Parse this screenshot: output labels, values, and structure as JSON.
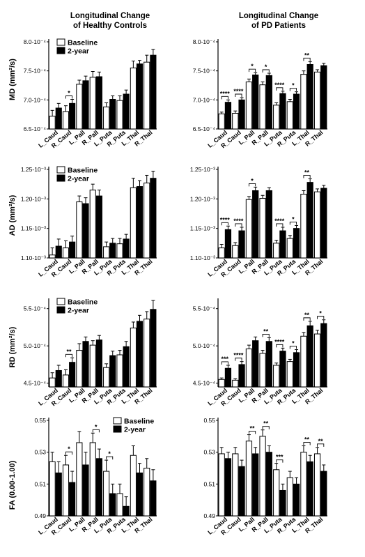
{
  "column_titles": [
    [
      "Longitudinal Change",
      "of Healthy Controls"
    ],
    [
      "Longitudinal Change",
      "of PD Patients"
    ]
  ],
  "row_labels": [
    "MD (mm²/s)",
    "AD (mm²/s)",
    "RD (mm²/s)",
    "FA (0.00-1.00)"
  ],
  "colors": {
    "baseline": "#ffffff",
    "two_year": "#000000",
    "axis": "#000000"
  },
  "chart_data": [
    {
      "type": "bar",
      "row": 0,
      "col": 0,
      "categories": [
        "L_Caud",
        "R_Caud",
        "L_Pall",
        "R_Pall",
        "L_Puta",
        "R_Puta",
        "L_Thal",
        "R_Thal"
      ],
      "ylim": [
        6.5,
        8.0
      ],
      "yticks": [
        6.5,
        7.0,
        7.5,
        8.0
      ],
      "yticklabels": [
        "6.5-10⁻⁴",
        "7.0-10⁻⁴",
        "7.5-10⁻⁴",
        "8.0-10⁻⁴"
      ],
      "ylabel": "MD (mm²/s)",
      "legend": [
        "Baseline",
        "2-year"
      ],
      "legend_position": "top-left",
      "series": [
        {
          "name": "Baseline",
          "values": [
            6.72,
            6.8,
            7.27,
            7.39,
            6.88,
            6.99,
            7.55,
            7.65
          ],
          "errors": [
            0.1,
            0.1,
            0.07,
            0.1,
            0.07,
            0.08,
            0.12,
            0.12
          ]
        },
        {
          "name": "2-year",
          "values": [
            6.86,
            6.94,
            7.33,
            7.4,
            7.01,
            7.1,
            7.62,
            7.77
          ],
          "errors": [
            0.08,
            0.07,
            0.08,
            0.08,
            0.06,
            0.07,
            0.06,
            0.1
          ]
        }
      ],
      "significance": [
        {
          "category": "R_Caud",
          "label": "*"
        }
      ]
    },
    {
      "type": "bar",
      "row": 0,
      "col": 1,
      "categories": [
        "L_Caud",
        "R_Caud",
        "L_Pall",
        "R_Pall",
        "L_Puta",
        "R_Puta",
        "L_Thal",
        "R_Thal"
      ],
      "ylim": [
        6.5,
        8.0
      ],
      "yticks": [
        6.5,
        7.0,
        7.5,
        8.0
      ],
      "yticklabels": [
        "6.5-10⁻⁴",
        "7.0-10⁻⁴",
        "7.5-10⁻⁴",
        "8.0-10⁻⁴"
      ],
      "series": [
        {
          "name": "Baseline",
          "values": [
            6.76,
            6.77,
            7.31,
            7.26,
            6.91,
            6.97,
            7.44,
            7.48
          ],
          "errors": [
            0.03,
            0.04,
            0.05,
            0.05,
            0.04,
            0.04,
            0.06,
            0.04
          ]
        },
        {
          "name": "2-year",
          "values": [
            6.96,
            7.0,
            7.43,
            7.42,
            7.11,
            7.1,
            7.61,
            7.59
          ],
          "errors": [
            0.04,
            0.04,
            0.04,
            0.04,
            0.04,
            0.04,
            0.05,
            0.04
          ]
        }
      ],
      "significance": [
        {
          "category": "L_Caud",
          "label": "****"
        },
        {
          "category": "R_Caud",
          "label": "****"
        },
        {
          "category": "L_Pall",
          "label": "*"
        },
        {
          "category": "R_Pall",
          "label": "*"
        },
        {
          "category": "L_Puta",
          "label": "****"
        },
        {
          "category": "R_Puta",
          "label": "*"
        },
        {
          "category": "L_Thal",
          "label": "**"
        }
      ]
    },
    {
      "type": "bar",
      "row": 1,
      "col": 0,
      "categories": [
        "L_Caud",
        "R_Caud",
        "L_Pall",
        "R_Pall",
        "L_Puta",
        "R_Puta",
        "L_Thal",
        "R_Thal"
      ],
      "ylim": [
        1.1,
        1.25
      ],
      "yticks": [
        1.1,
        1.15,
        1.2,
        1.25
      ],
      "yticklabels": [
        "1.10-10⁻³",
        "1.15-10⁻³",
        "1.20-10⁻³",
        "1.25-10⁻³"
      ],
      "ylabel": "AD (mm²/s)",
      "legend": [
        "Baseline",
        "2-year"
      ],
      "legend_position": "top-left",
      "series": [
        {
          "name": "Baseline",
          "values": [
            1.105,
            1.117,
            1.195,
            1.215,
            1.119,
            1.124,
            1.219,
            1.227
          ],
          "errors": [
            0.012,
            0.012,
            0.01,
            0.01,
            0.008,
            0.009,
            0.016,
            0.013
          ]
        },
        {
          "name": "2-year",
          "values": [
            1.12,
            1.127,
            1.192,
            1.205,
            1.125,
            1.132,
            1.221,
            1.235
          ],
          "errors": [
            0.012,
            0.01,
            0.01,
            0.01,
            0.008,
            0.008,
            0.01,
            0.012
          ]
        }
      ],
      "significance": []
    },
    {
      "type": "bar",
      "row": 1,
      "col": 1,
      "categories": [
        "L_Caud",
        "R_Caud",
        "L_Pall",
        "R_Pall",
        "L_Puta",
        "R_Puta",
        "L_Thal",
        "R_Thal"
      ],
      "ylim": [
        1.1,
        1.25
      ],
      "yticks": [
        1.1,
        1.15,
        1.2,
        1.25
      ],
      "yticklabels": [
        "1.10-10⁻³",
        "1.15-10⁻³",
        "1.20-10⁻³",
        "1.25-10⁻³"
      ],
      "series": [
        {
          "name": "Baseline",
          "values": [
            1.117,
            1.121,
            1.199,
            1.201,
            1.125,
            1.133,
            1.208,
            1.212
          ],
          "errors": [
            0.006,
            0.005,
            0.005,
            0.005,
            0.005,
            0.005,
            0.006,
            0.005
          ]
        },
        {
          "name": "2-year",
          "values": [
            1.148,
            1.146,
            1.214,
            1.214,
            1.146,
            1.15,
            1.228,
            1.218
          ],
          "errors": [
            0.006,
            0.006,
            0.006,
            0.005,
            0.006,
            0.005,
            0.006,
            0.005
          ]
        }
      ],
      "significance": [
        {
          "category": "L_Caud",
          "label": "****"
        },
        {
          "category": "R_Caud",
          "label": "****"
        },
        {
          "category": "L_Pall",
          "label": "*"
        },
        {
          "category": "L_Puta",
          "label": "****"
        },
        {
          "category": "R_Puta",
          "label": "*"
        },
        {
          "category": "L_Thal",
          "label": "**"
        }
      ]
    },
    {
      "type": "bar",
      "row": 2,
      "col": 0,
      "categories": [
        "L_Caud",
        "R_Caud",
        "L_Pall",
        "R_Pall",
        "L_Puta",
        "R_Puta",
        "L_Thal",
        "R_Thal"
      ],
      "ylim": [
        4.45,
        5.6
      ],
      "yticks": [
        4.5,
        5.0,
        5.5
      ],
      "yticklabels": [
        "4.5-10⁻⁴",
        "5.0-10⁻⁴",
        "5.5-10⁻⁴"
      ],
      "ylabel": "RD (mm²/s)",
      "legend": [
        "Baseline",
        "2-year"
      ],
      "legend_position": "top-left",
      "series": [
        {
          "name": "Baseline",
          "values": [
            4.57,
            4.61,
            4.94,
            5.01,
            4.71,
            4.88,
            5.24,
            5.36
          ],
          "errors": [
            0.07,
            0.07,
            0.09,
            0.06,
            0.05,
            0.06,
            0.08,
            0.1
          ]
        },
        {
          "name": "2-year",
          "values": [
            4.67,
            4.78,
            5.06,
            5.08,
            4.87,
            4.99,
            5.33,
            5.49
          ],
          "errors": [
            0.07,
            0.06,
            0.06,
            0.06,
            0.06,
            0.07,
            0.08,
            0.12
          ]
        }
      ],
      "significance": [
        {
          "category": "R_Caud",
          "label": "**"
        }
      ]
    },
    {
      "type": "bar",
      "row": 2,
      "col": 1,
      "categories": [
        "L_Caud",
        "R_Caud",
        "L_Pall",
        "R_Pall",
        "L_Puta",
        "R_Puta",
        "L_Thal",
        "R_Thal"
      ],
      "ylim": [
        4.45,
        5.6
      ],
      "yticks": [
        4.5,
        5.0,
        5.5
      ],
      "yticklabels": [
        "4.5-10⁻⁴",
        "5.0-10⁻⁴",
        "5.5-10⁻⁴"
      ],
      "series": [
        {
          "name": "Baseline",
          "values": [
            4.55,
            4.54,
            4.96,
            4.9,
            4.74,
            4.79,
            5.13,
            5.16
          ],
          "errors": [
            0.02,
            0.02,
            0.05,
            0.04,
            0.03,
            0.03,
            0.05,
            0.05
          ]
        },
        {
          "name": "2-year",
          "values": [
            4.7,
            4.75,
            5.07,
            5.06,
            4.93,
            4.91,
            5.27,
            5.3
          ],
          "errors": [
            0.04,
            0.04,
            0.05,
            0.05,
            0.04,
            0.04,
            0.06,
            0.05
          ]
        }
      ],
      "significance": [
        {
          "category": "L_Caud",
          "label": "***"
        },
        {
          "category": "R_Caud",
          "label": "****"
        },
        {
          "category": "R_Pall",
          "label": "**"
        },
        {
          "category": "L_Puta",
          "label": "****"
        },
        {
          "category": "R_Puta",
          "label": "*"
        },
        {
          "category": "L_Thal",
          "label": "**"
        },
        {
          "category": "R_Thal",
          "label": "*"
        }
      ]
    },
    {
      "type": "bar",
      "row": 3,
      "col": 0,
      "categories": [
        "L_Caud",
        "R_Caud",
        "L_Pall",
        "R_Pall",
        "L_Puta",
        "R_Puta",
        "L_Thal",
        "R_Thal"
      ],
      "ylim": [
        0.49,
        0.55
      ],
      "yticks": [
        0.49,
        0.51,
        0.53,
        0.55
      ],
      "yticklabels": [
        "0.49",
        "0.51",
        "0.53",
        "0.55"
      ],
      "ylabel": "FA (0.00-1.00)",
      "legend": [
        "Baseline",
        "2-year"
      ],
      "legend_position": "top-right",
      "series": [
        {
          "name": "Baseline",
          "values": [
            0.524,
            0.522,
            0.536,
            0.536,
            0.518,
            0.504,
            0.528,
            0.52
          ],
          "errors": [
            0.006,
            0.006,
            0.007,
            0.006,
            0.007,
            0.006,
            0.006,
            0.006
          ]
        },
        {
          "name": "2-year",
          "values": [
            0.517,
            0.511,
            0.522,
            0.526,
            0.504,
            0.496,
            0.517,
            0.512
          ],
          "errors": [
            0.007,
            0.007,
            0.008,
            0.006,
            0.006,
            0.006,
            0.006,
            0.007
          ]
        }
      ],
      "significance": [
        {
          "category": "R_Caud",
          "label": "*"
        },
        {
          "category": "R_Pall",
          "label": "*"
        },
        {
          "category": "L_Puta",
          "label": "*"
        }
      ]
    },
    {
      "type": "bar",
      "row": 3,
      "col": 1,
      "categories": [
        "L_Caud",
        "R_Caud",
        "L_Pall",
        "R_Pall",
        "L_Puta",
        "R_Puta",
        "L_Thal",
        "R_Thal"
      ],
      "ylim": [
        0.49,
        0.55
      ],
      "yticks": [
        0.49,
        0.51,
        0.53,
        0.55
      ],
      "yticklabels": [
        "0.49",
        "0.51",
        "0.53",
        "0.55"
      ],
      "series": [
        {
          "name": "Baseline",
          "values": [
            0.529,
            0.529,
            0.537,
            0.54,
            0.519,
            0.514,
            0.53,
            0.529
          ],
          "errors": [
            0.004,
            0.004,
            0.004,
            0.004,
            0.004,
            0.004,
            0.004,
            0.004
          ]
        },
        {
          "name": "2-year",
          "values": [
            0.526,
            0.521,
            0.529,
            0.53,
            0.506,
            0.51,
            0.524,
            0.518
          ],
          "errors": [
            0.004,
            0.004,
            0.004,
            0.004,
            0.004,
            0.004,
            0.004,
            0.004
          ]
        }
      ],
      "significance": [
        {
          "category": "L_Pall",
          "label": "**"
        },
        {
          "category": "R_Pall",
          "label": "**"
        },
        {
          "category": "L_Puta",
          "label": "***"
        },
        {
          "category": "L_Thal",
          "label": "**"
        },
        {
          "category": "R_Thal",
          "label": "**"
        }
      ]
    }
  ]
}
